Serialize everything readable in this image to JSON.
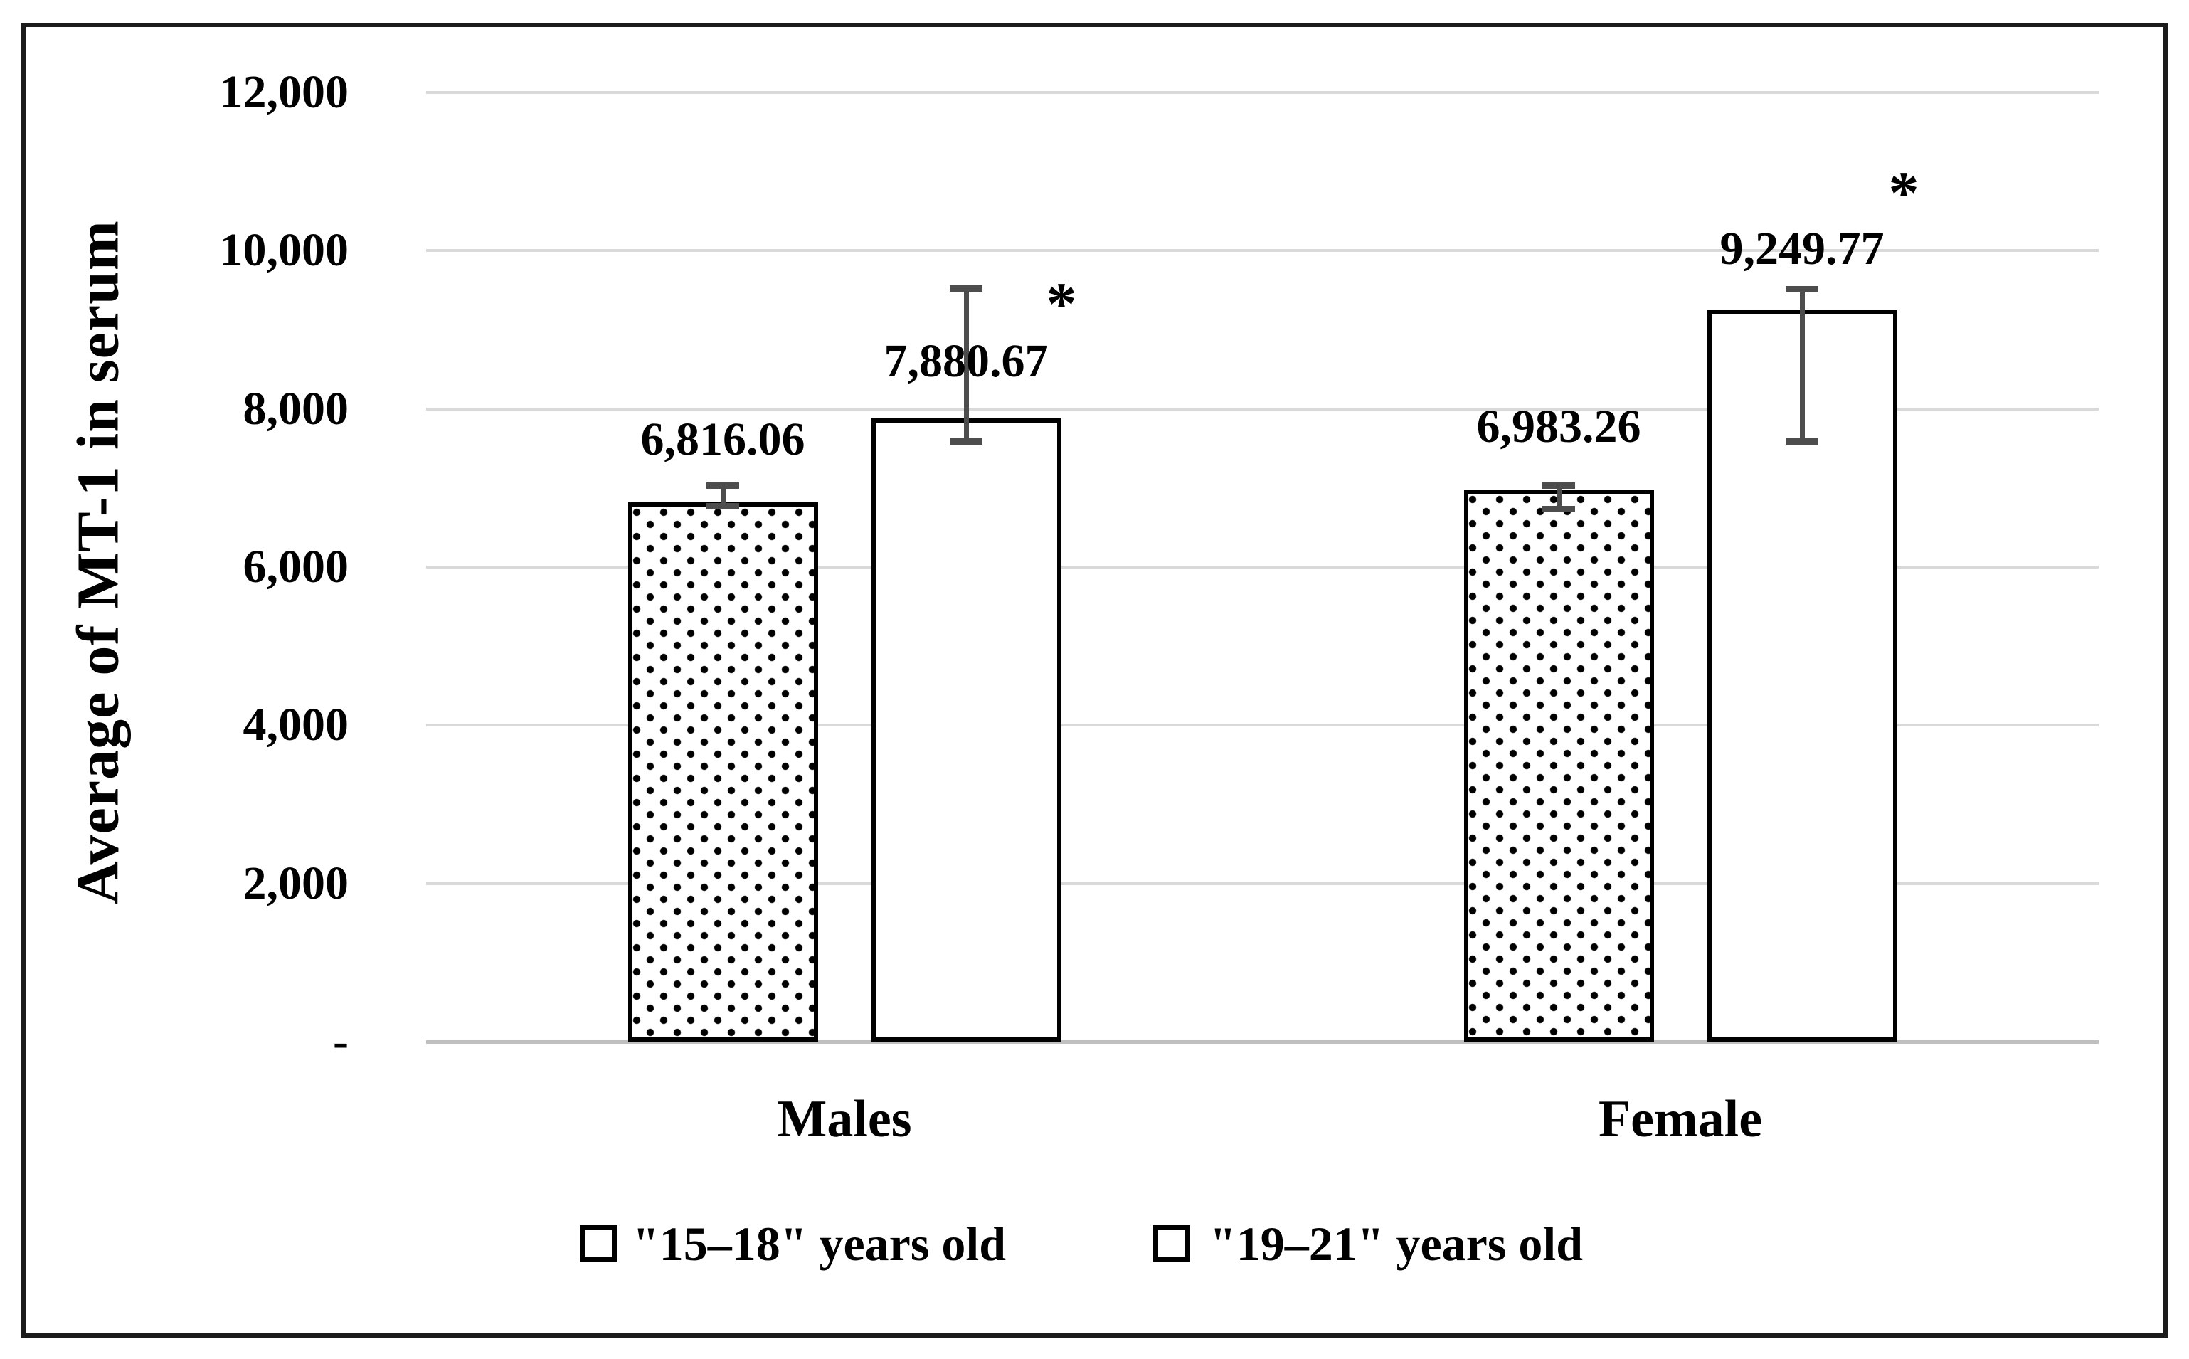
{
  "chart_data": {
    "type": "bar",
    "title": "",
    "ylabel": "Average of MT-1 in serum",
    "xlabel": "",
    "categories": [
      "Males",
      "Female"
    ],
    "series": [
      {
        "name": "\"15–18\" years old",
        "pattern": "dotted",
        "values": [
          6816.06,
          6983.26
        ],
        "labels": [
          "6,816.06",
          "6,983.26"
        ],
        "error_top": [
          7030,
          7030
        ],
        "error_bottom": [
          6770,
          6740
        ],
        "significant": [
          false,
          false
        ]
      },
      {
        "name": "\"19–21\" years old",
        "pattern": "plain",
        "values": [
          7880.67,
          9249.77
        ],
        "labels": [
          "7,880.67",
          "9,249.77"
        ],
        "error_top": [
          9530,
          9520
        ],
        "error_bottom": [
          7590,
          7590
        ],
        "significant": [
          true,
          true
        ]
      }
    ],
    "significance_marker": "*",
    "y_axis": {
      "min": 0,
      "max": 12000,
      "tick_step": 2000,
      "tick_values": [
        12000,
        10000,
        8000,
        6000,
        4000,
        2000,
        0
      ],
      "tick_labels": [
        "12,000",
        "10,000",
        "8,000",
        "6,000",
        "4,000",
        "2,000",
        "-"
      ]
    },
    "legend_position": "bottom",
    "grid": true,
    "error_bars": true,
    "colors": {
      "bar_fill": "#ffffff",
      "bar_border": "#000000",
      "gridline": "#d9d9d9",
      "axis_line": "#bfbfbf",
      "error_bar": "#4d4d4d",
      "text": "#000000",
      "frame_border": "#1c1c1c"
    }
  }
}
